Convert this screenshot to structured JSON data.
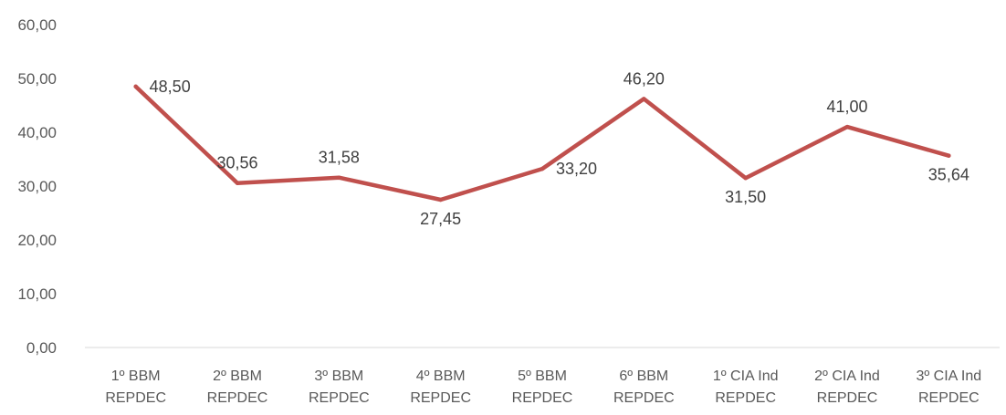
{
  "chart_data": {
    "type": "line",
    "title": "",
    "xlabel": "",
    "ylabel": "",
    "ylim": [
      0,
      60
    ],
    "y_ticks": [
      "0,00",
      "10,00",
      "20,00",
      "30,00",
      "40,00",
      "50,00",
      "60,00"
    ],
    "y_tick_values": [
      0,
      10,
      20,
      30,
      40,
      50,
      60
    ],
    "grid": false,
    "legend": "none",
    "categories": [
      [
        "1º BBM",
        "REPDEC"
      ],
      [
        "2º BBM",
        "REPDEC"
      ],
      [
        "3º BBM",
        "REPDEC"
      ],
      [
        "4º BBM",
        "REPDEC"
      ],
      [
        "5º BBM",
        "REPDEC"
      ],
      [
        "6º BBM",
        "REPDEC"
      ],
      [
        "1º CIA Ind",
        "REPDEC"
      ],
      [
        "2º CIA Ind",
        "REPDEC"
      ],
      [
        "3º CIA Ind",
        "REPDEC"
      ]
    ],
    "series": [
      {
        "values": [
          48.5,
          30.56,
          31.58,
          27.45,
          33.2,
          46.2,
          31.5,
          41.0,
          35.64
        ],
        "labels": [
          "48,50",
          "30,56",
          "31,58",
          "27,45",
          "33,20",
          "46,20",
          "31,50",
          "41,00",
          "35,64"
        ],
        "label_positions": [
          "right",
          "above",
          "above",
          "below",
          "right",
          "above",
          "below",
          "above",
          "below"
        ],
        "color": "#C0504D"
      }
    ],
    "axis_color": "#D9D9D9"
  }
}
